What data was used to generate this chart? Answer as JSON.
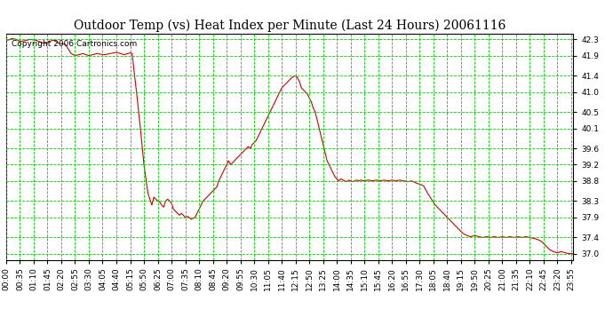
{
  "title": "Outdoor Temp (vs) Heat Index per Minute (Last 24 Hours) 20061116",
  "copyright_text": "Copyright 2006 Cartronics.com",
  "background_color": "#ffffff",
  "line_color": "#cc0000",
  "grid_color": "#00cc00",
  "yticks": [
    37.0,
    37.4,
    37.9,
    38.3,
    38.8,
    39.2,
    39.6,
    40.1,
    40.5,
    41.0,
    41.4,
    41.9,
    42.3
  ],
  "ymin": 36.85,
  "ymax": 42.45,
  "xtick_labels": [
    "00:00",
    "00:35",
    "01:10",
    "01:45",
    "02:20",
    "02:55",
    "03:30",
    "04:05",
    "04:40",
    "05:15",
    "05:50",
    "06:25",
    "07:00",
    "07:35",
    "08:10",
    "08:45",
    "09:20",
    "09:55",
    "10:30",
    "11:05",
    "11:40",
    "12:15",
    "12:50",
    "13:25",
    "14:00",
    "14:35",
    "15:10",
    "15:45",
    "16:20",
    "16:55",
    "17:30",
    "18:05",
    "18:40",
    "19:15",
    "19:50",
    "20:25",
    "21:00",
    "21:35",
    "22:10",
    "22:45",
    "23:20",
    "23:55"
  ],
  "title_fontsize": 10,
  "copyright_fontsize": 6.5,
  "tick_fontsize": 6.5
}
